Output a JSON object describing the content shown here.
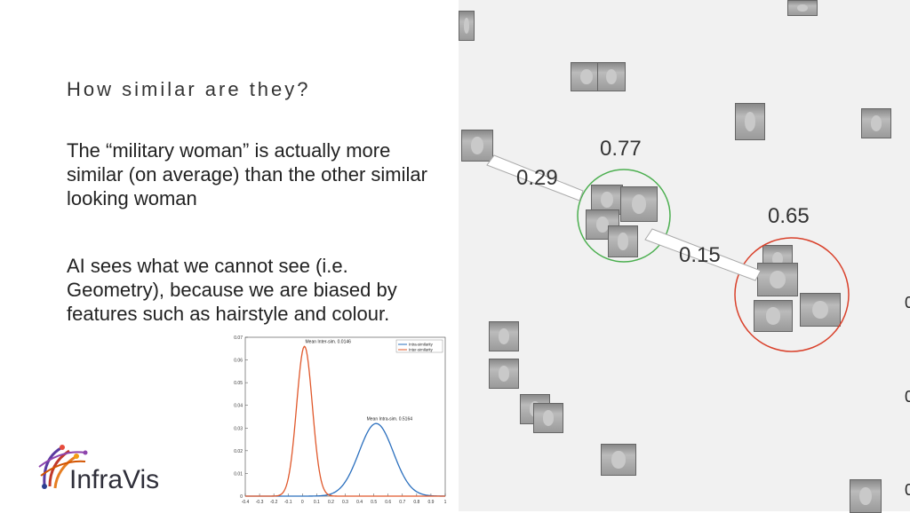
{
  "slide": {
    "title": "How similar are they?",
    "paragraph1": "The “military woman” is actually more similar (on average) than the other similar looking woman",
    "paragraph2": "AI sees what we cannot see (i.e. Geometry), because we are biased by features such as hairstyle and colour.",
    "logo_text": "InfraVis"
  },
  "similarity": {
    "cluster1_intra": "0.77",
    "cluster2_intra": "0.65",
    "link_outlier": "0.29",
    "link_clusters": "0.15",
    "cluster1_color": "#4caf50",
    "cluster2_color": "#d9412b"
  },
  "right_edge_labels": [
    "0",
    "0",
    "0"
  ],
  "chart_data": {
    "type": "line",
    "x_ticks": [
      "-0.4",
      "-0.3",
      "-0.2",
      "-0.1",
      "0",
      "0.1",
      "0.2",
      "0.3",
      "0.4",
      "0.5",
      "0.6",
      "0.7",
      "0.8",
      "0.9",
      "1"
    ],
    "y_ticks": [
      "0",
      "0.01",
      "0.02",
      "0.03",
      "0.04",
      "0.05",
      "0.06",
      "0.07"
    ],
    "xlim": [
      -0.4,
      1
    ],
    "ylim": [
      0,
      0.07
    ],
    "series": [
      {
        "name": "intra-similarity",
        "color": "#2a6fbe",
        "mean": 0.5164,
        "sd": 0.12,
        "peak": 0.032
      },
      {
        "name": "inter-similarity",
        "color": "#e0582b",
        "mean": 0.0146,
        "sd": 0.055,
        "peak": 0.066
      }
    ],
    "annotations": {
      "inter": "Mean Inter-sim. 0.0146",
      "intra": "Mean Intra-sim. 0.5164"
    },
    "legend": "top-right"
  }
}
